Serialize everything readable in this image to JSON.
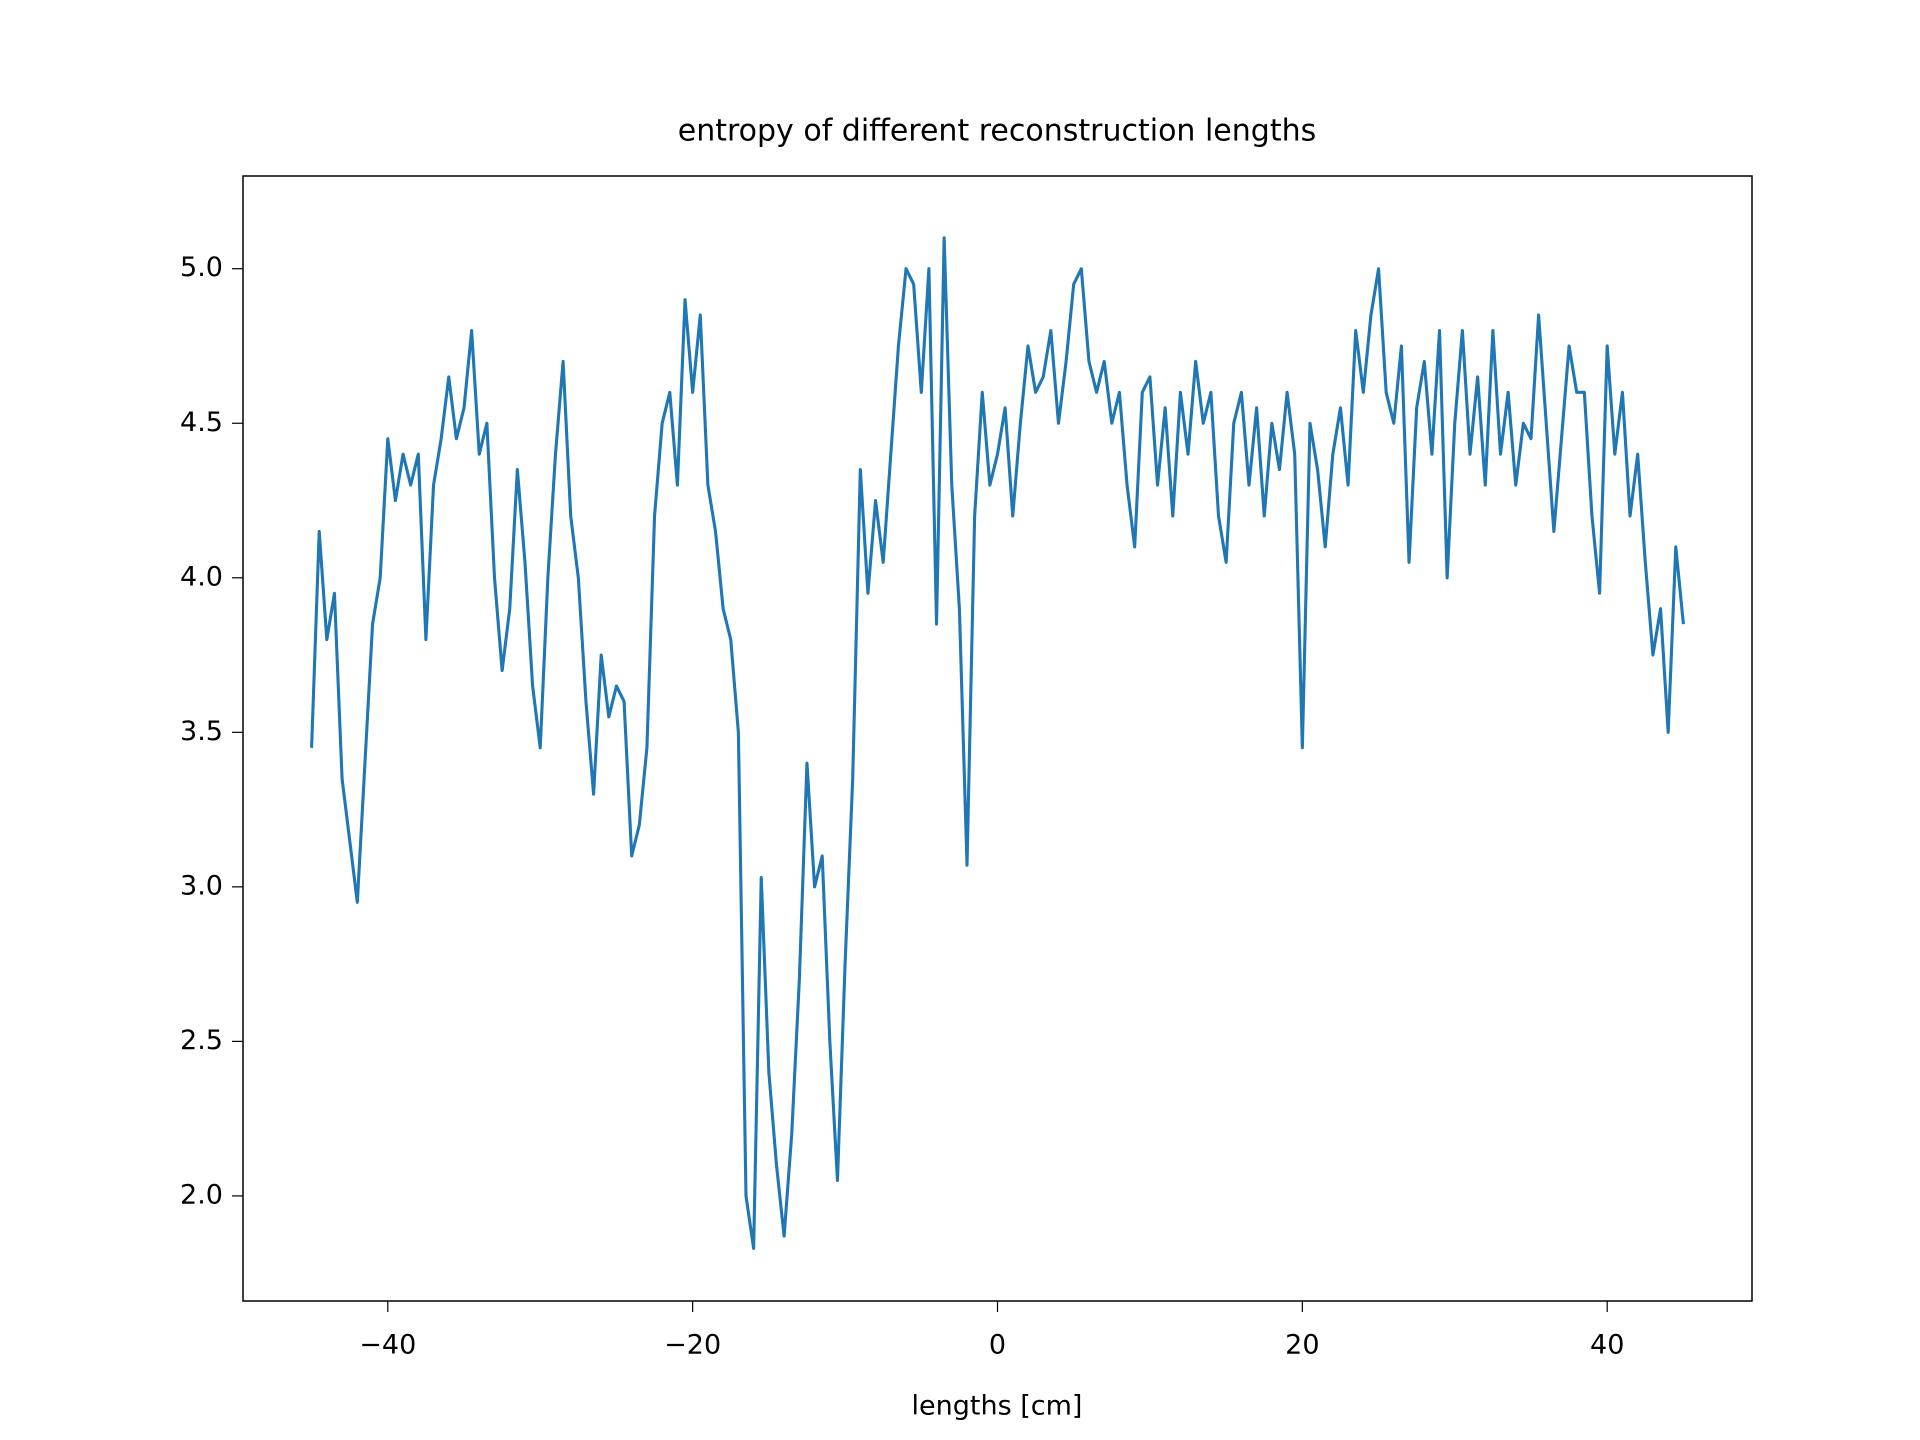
{
  "chart_data": {
    "type": "line",
    "title": "entropy of different reconstruction lengths",
    "x_label": "lengths [cm]",
    "x": [
      -45,
      -44.5,
      -44,
      -43.5,
      -43,
      -42.5,
      -42,
      -41.5,
      -41,
      -40.5,
      -40,
      -39.5,
      -39,
      -38.5,
      -38,
      -37.5,
      -37,
      -36.5,
      -36,
      -35.5,
      -35,
      -34.5,
      -34,
      -33.5,
      -33,
      -32.5,
      -32,
      -31.5,
      -31,
      -30.5,
      -30,
      -29.5,
      -29,
      -28.5,
      -28,
      -27.5,
      -27,
      -26.5,
      -26,
      -25.5,
      -25,
      -24.5,
      -24,
      -23.5,
      -23,
      -22.5,
      -22,
      -21.5,
      -21,
      -20.5,
      -20,
      -19.5,
      -19,
      -18.5,
      -18,
      -17.5,
      -17,
      -16.5,
      -16,
      -15.5,
      -15,
      -14.5,
      -14,
      -13.5,
      -13,
      -12.5,
      -12,
      -11.5,
      -11,
      -10.5,
      -10,
      -9.5,
      -9,
      -8.5,
      -8,
      -7.5,
      -7,
      -6.5,
      -6,
      -5.5,
      -5,
      -4.5,
      -4,
      -3.5,
      -3,
      -2.5,
      -2,
      -1.5,
      -1,
      -0.5,
      0,
      0.5,
      1,
      1.5,
      2,
      2.5,
      3,
      3.5,
      4,
      4.5,
      5,
      5.5,
      6,
      6.5,
      7,
      7.5,
      8,
      8.5,
      9,
      9.5,
      10,
      10.5,
      11,
      11.5,
      12,
      12.5,
      13,
      13.5,
      14,
      14.5,
      15,
      15.5,
      16,
      16.5,
      17,
      17.5,
      18,
      18.5,
      19,
      19.5,
      20,
      20.5,
      21,
      21.5,
      22,
      22.5,
      23,
      23.5,
      24,
      24.5,
      25,
      25.5,
      26,
      26.5,
      27,
      27.5,
      28,
      28.5,
      29,
      29.5,
      30,
      30.5,
      31,
      31.5,
      32,
      32.5,
      33,
      33.5,
      34,
      34.5,
      35,
      35.5,
      36,
      36.5,
      37,
      37.5,
      38,
      38.5,
      39,
      39.5,
      40,
      40.5,
      41,
      41.5,
      42,
      42.5,
      43,
      43.5,
      44,
      44.5,
      45
    ],
    "series": [
      {
        "name": "entropy",
        "color": "#1f77b4",
        "values": [
          3.45,
          4.15,
          3.8,
          3.95,
          3.35,
          3.15,
          2.95,
          3.4,
          3.85,
          4.0,
          4.45,
          4.25,
          4.4,
          4.3,
          4.4,
          3.8,
          4.3,
          4.45,
          4.65,
          4.45,
          4.55,
          4.8,
          4.4,
          4.5,
          4.0,
          3.7,
          3.9,
          4.35,
          4.05,
          3.65,
          3.45,
          4.0,
          4.4,
          4.7,
          4.2,
          4.0,
          3.6,
          3.3,
          3.75,
          3.55,
          3.65,
          3.6,
          3.1,
          3.2,
          3.45,
          4.2,
          4.5,
          4.6,
          4.3,
          4.9,
          4.6,
          4.85,
          4.3,
          4.15,
          3.9,
          3.8,
          3.5,
          2.0,
          1.83,
          3.03,
          2.4,
          2.1,
          1.87,
          2.2,
          2.7,
          3.4,
          3.0,
          3.1,
          2.5,
          2.05,
          2.75,
          3.35,
          4.35,
          3.95,
          4.25,
          4.05,
          4.4,
          4.75,
          5.0,
          4.95,
          4.6,
          5.0,
          3.85,
          5.1,
          4.3,
          3.9,
          3.07,
          4.2,
          4.6,
          4.3,
          4.4,
          4.55,
          4.2,
          4.5,
          4.75,
          4.6,
          4.65,
          4.8,
          4.5,
          4.7,
          4.95,
          5.0,
          4.7,
          4.6,
          4.7,
          4.5,
          4.6,
          4.3,
          4.1,
          4.6,
          4.65,
          4.3,
          4.55,
          4.2,
          4.6,
          4.4,
          4.7,
          4.5,
          4.6,
          4.2,
          4.05,
          4.5,
          4.6,
          4.3,
          4.55,
          4.2,
          4.5,
          4.35,
          4.6,
          4.4,
          3.45,
          4.5,
          4.35,
          4.1,
          4.4,
          4.55,
          4.3,
          4.8,
          4.6,
          4.85,
          5.0,
          4.6,
          4.5,
          4.75,
          4.05,
          4.55,
          4.7,
          4.4,
          4.8,
          4.0,
          4.5,
          4.8,
          4.4,
          4.65,
          4.3,
          4.8,
          4.4,
          4.6,
          4.3,
          4.5,
          4.45,
          4.85,
          4.5,
          4.15,
          4.45,
          4.75,
          4.6,
          4.6,
          4.2,
          3.95,
          4.75,
          4.4,
          4.6,
          4.2,
          4.4,
          4.05,
          3.75,
          3.9,
          3.5,
          4.1,
          3.85
        ]
      }
    ],
    "xlim": [
      -49.5,
      49.5
    ],
    "xticks": [
      {
        "value": -40,
        "label": "−40"
      },
      {
        "value": -20,
        "label": "−20"
      },
      0,
      20,
      40
    ],
    "ylim": [
      1.66,
      5.3
    ],
    "yticks": [
      {
        "value": 2,
        "label": "2.0"
      },
      {
        "value": 2.5,
        "label": "2.5"
      },
      {
        "value": 3,
        "label": "3.0"
      },
      {
        "value": 3.5,
        "label": "3.5"
      },
      {
        "value": 4,
        "label": "4.0"
      },
      {
        "value": 4.5,
        "label": "4.5"
      },
      {
        "value": 5,
        "label": "5.0"
      }
    ],
    "grid": false
  }
}
